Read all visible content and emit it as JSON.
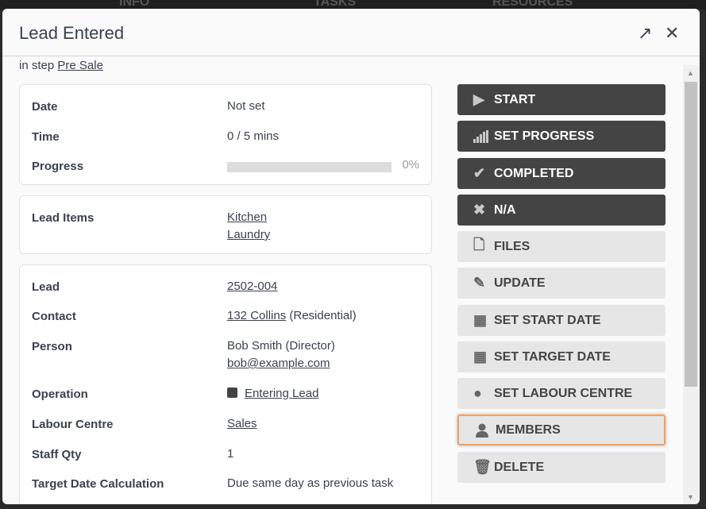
{
  "background_tabs": [
    "INFO",
    "TASKS",
    "RESOURCES"
  ],
  "modal": {
    "title": "Lead Entered",
    "step_prefix": "in step",
    "step_link": "Pre Sale"
  },
  "summary": {
    "date_label": "Date",
    "date_value": "Not set",
    "time_label": "Time",
    "time_value": "0 / 5 mins",
    "progress_label": "Progress",
    "progress_percent": 0,
    "progress_text": "0%"
  },
  "lead_items": {
    "label": "Lead Items",
    "items": [
      "Kitchen",
      "Laundry"
    ]
  },
  "details": {
    "lead_label": "Lead",
    "lead_value": "2502-004",
    "contact_label": "Contact",
    "contact_link": "132 Collins",
    "contact_suffix": "(Residential)",
    "person_label": "Person",
    "person_name": "Bob Smith (Director)",
    "person_email": "bob@example.com",
    "operation_label": "Operation",
    "operation_value": "Entering Lead",
    "labour_centre_label": "Labour Centre",
    "labour_centre_value": "Sales",
    "staff_qty_label": "Staff Qty",
    "staff_qty_value": "1",
    "target_label": "Target Date Calculation",
    "target_value": "Due same day as previous task"
  },
  "actions": [
    {
      "label": "START",
      "icon": "play-icon"
    },
    {
      "label": "SET PROGRESS",
      "icon": "signal-bars-icon"
    },
    {
      "label": "COMPLETED",
      "icon": "check-icon"
    },
    {
      "label": "N/A",
      "icon": "x-icon"
    },
    {
      "label": "FILES",
      "icon": "file-icon"
    },
    {
      "label": "UPDATE",
      "icon": "pencil-icon"
    },
    {
      "label": "SET START DATE",
      "icon": "calendar-icon"
    },
    {
      "label": "SET TARGET DATE",
      "icon": "calendar-icon"
    },
    {
      "label": "SET LABOUR CENTRE",
      "icon": "circle-icon"
    },
    {
      "label": "MEMBERS",
      "icon": "user-icon"
    },
    {
      "label": "DELETE",
      "icon": "trash-icon"
    }
  ],
  "colors": {
    "dark_button": "#444444",
    "light_button": "#e6e6e6",
    "focus_ring": "#f0a060"
  }
}
